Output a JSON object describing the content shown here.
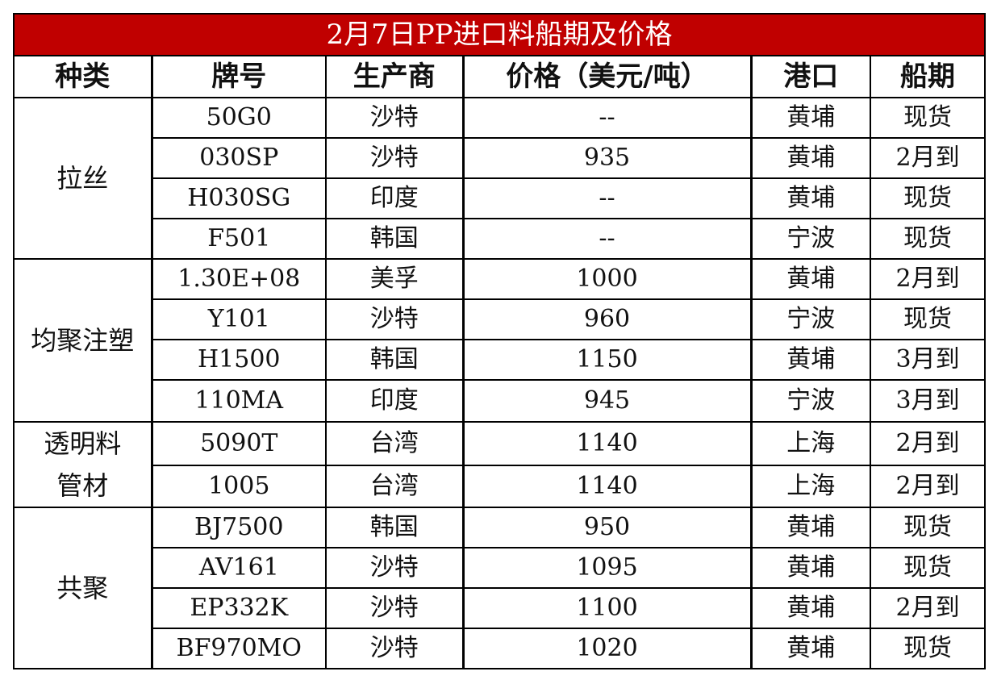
{
  "title": "2月7日PP进口料船期及价格",
  "colors": {
    "title_background": "#c00000",
    "title_text": "#ffffff",
    "border": "#000000"
  },
  "headers": {
    "category": "种类",
    "grade": "牌号",
    "producer": "生产商",
    "price": "价格（美元/吨）",
    "port": "港口",
    "shipment": "船期"
  },
  "groups": [
    {
      "category": "拉丝",
      "rows": [
        {
          "grade": "50G0",
          "producer": "沙特",
          "price": "--",
          "port": "黄埔",
          "shipment": "现货"
        },
        {
          "grade": "030SP",
          "producer": "沙特",
          "price": "935",
          "port": "黄埔",
          "shipment": "2月到"
        },
        {
          "grade": "H030SG",
          "producer": "印度",
          "price": "--",
          "port": "黄埔",
          "shipment": "现货"
        },
        {
          "grade": "F501",
          "producer": "韩国",
          "price": "--",
          "port": "宁波",
          "shipment": "现货"
        }
      ]
    },
    {
      "category": "均聚注塑",
      "rows": [
        {
          "grade": "1.30E+08",
          "producer": "美孚",
          "price": "1000",
          "port": "黄埔",
          "shipment": "2月到"
        },
        {
          "grade": "Y101",
          "producer": "沙特",
          "price": "960",
          "port": "宁波",
          "shipment": "现货"
        },
        {
          "grade": "H1500",
          "producer": "韩国",
          "price": "1150",
          "port": "黄埔",
          "shipment": "3月到"
        },
        {
          "grade": "110MA",
          "producer": "印度",
          "price": "945",
          "port": "宁波",
          "shipment": "3月到"
        }
      ]
    },
    {
      "category_line1": "透明料",
      "category_line2": "管材",
      "rows": [
        {
          "grade": "5090T",
          "producer": "台湾",
          "price": "1140",
          "port": "上海",
          "shipment": "2月到"
        },
        {
          "grade": "1005",
          "producer": "台湾",
          "price": "1140",
          "port": "上海",
          "shipment": "2月到"
        }
      ]
    },
    {
      "category": "共聚",
      "rows": [
        {
          "grade": "BJ7500",
          "producer": "韩国",
          "price": "950",
          "port": "黄埔",
          "shipment": "现货"
        },
        {
          "grade": "AV161",
          "producer": "沙特",
          "price": "1095",
          "port": "黄埔",
          "shipment": "现货"
        },
        {
          "grade": "EP332K",
          "producer": "沙特",
          "price": "1100",
          "port": "黄埔",
          "shipment": "2月到"
        },
        {
          "grade": "BF970MO",
          "producer": "沙特",
          "price": "1020",
          "port": "黄埔",
          "shipment": "现货"
        }
      ]
    }
  ]
}
